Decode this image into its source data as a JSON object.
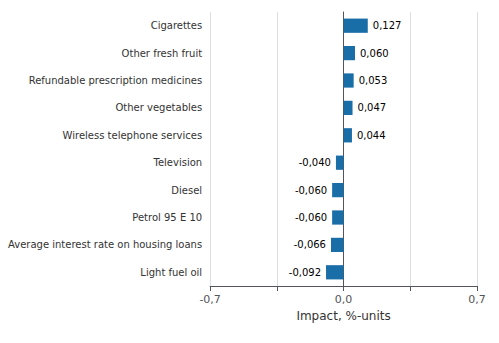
{
  "chart_data": {
    "type": "bar",
    "orientation": "horizontal",
    "xlabel": "Impact, %-units",
    "categories": [
      "Light fuel oil",
      "Average interest rate on housing loans",
      "Petrol 95 E 10",
      "Diesel",
      "Television",
      "Wireless telephone services",
      "Other vegetables",
      "Refundable prescription medicines",
      "Other fresh fruit",
      "Cigarettes"
    ],
    "values": [
      -0.092,
      -0.066,
      -0.06,
      -0.06,
      -0.04,
      0.044,
      0.047,
      0.053,
      0.06,
      0.127
    ],
    "value_labels": [
      "-0,092",
      "-0,066",
      "-0,060",
      "-0,060",
      "-0,040",
      "0,044",
      "0,047",
      "0,053",
      "0,060",
      "0,127"
    ],
    "data_labels": true,
    "color": "#1a6ea8",
    "xlim": [
      -0.7,
      0.7
    ],
    "xticks": [
      {
        "value": -0.7,
        "label": "-0,7"
      },
      {
        "value": -0.35,
        "label": ""
      },
      {
        "value": 0.0,
        "label": "0,0"
      },
      {
        "value": 0.35,
        "label": ""
      },
      {
        "value": 0.7,
        "label": "0,7"
      }
    ],
    "grid": true
  }
}
